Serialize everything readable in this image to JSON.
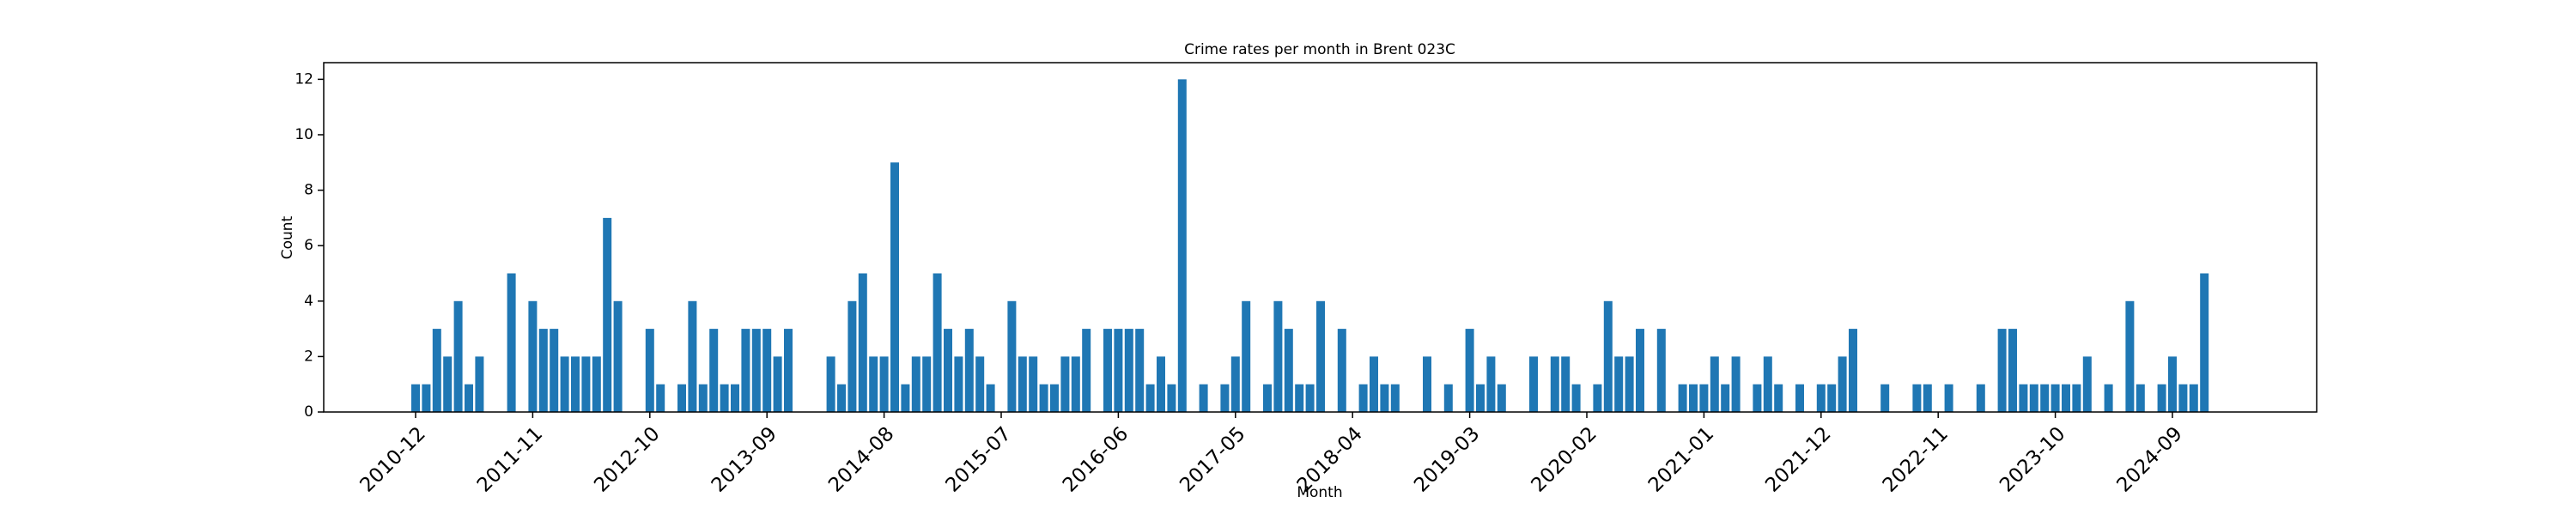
{
  "chart_data": {
    "type": "bar",
    "title": "Crime rates per month in Brent 023C",
    "x_label": "Month",
    "y_label": "Count",
    "color": "#1f77b4",
    "categories": [
      "2010-12",
      null,
      null,
      null,
      null,
      null,
      null,
      null,
      null,
      null,
      null,
      "2011-11",
      null,
      null,
      null,
      null,
      null,
      null,
      null,
      null,
      null,
      null,
      "2012-10",
      null,
      null,
      null,
      null,
      null,
      null,
      null,
      null,
      null,
      null,
      "2013-09",
      null,
      null,
      null,
      null,
      null,
      null,
      null,
      null,
      null,
      null,
      "2014-08",
      null,
      null,
      null,
      null,
      null,
      null,
      null,
      null,
      null,
      null,
      "2015-07",
      null,
      null,
      null,
      null,
      null,
      null,
      null,
      null,
      null,
      null,
      "2016-06",
      null,
      null,
      null,
      null,
      null,
      null,
      null,
      null,
      null,
      null,
      "2017-05",
      null,
      null,
      null,
      null,
      null,
      null,
      null,
      null,
      null,
      null,
      "2018-04",
      null,
      null,
      null,
      null,
      null,
      null,
      null,
      null,
      null,
      null,
      "2019-03",
      null,
      null,
      null,
      null,
      null,
      null,
      null,
      null,
      null,
      null,
      "2020-02",
      null,
      null,
      null,
      null,
      null,
      null,
      null,
      null,
      null,
      null,
      "2021-01",
      null,
      null,
      null,
      null,
      null,
      null,
      null,
      null,
      null,
      null,
      "2021-12",
      null,
      null,
      null,
      null,
      null,
      null,
      null,
      null,
      null,
      null,
      "2022-11",
      null,
      null,
      null,
      null,
      null,
      null,
      null,
      null,
      null,
      null,
      "2023-10",
      null,
      null,
      null,
      null,
      null,
      null,
      null,
      null,
      null,
      null,
      "2024-09",
      null,
      null,
      null
    ],
    "values": [
      1,
      1,
      3,
      2,
      4,
      1,
      2,
      0,
      0,
      5,
      0,
      4,
      3,
      3,
      2,
      2,
      2,
      2,
      7,
      4,
      0,
      0,
      3,
      1,
      0,
      1,
      4,
      1,
      3,
      1,
      1,
      3,
      3,
      3,
      2,
      3,
      0,
      0,
      0,
      2,
      1,
      4,
      5,
      2,
      2,
      9,
      1,
      2,
      2,
      5,
      3,
      2,
      3,
      2,
      1,
      0,
      4,
      2,
      2,
      1,
      1,
      2,
      2,
      3,
      0,
      3,
      3,
      3,
      3,
      1,
      2,
      1,
      12,
      0,
      1,
      0,
      1,
      2,
      4,
      0,
      1,
      4,
      3,
      1,
      1,
      4,
      0,
      3,
      0,
      1,
      2,
      1,
      1,
      0,
      0,
      2,
      0,
      1,
      0,
      3,
      1,
      2,
      1,
      0,
      0,
      2,
      0,
      2,
      2,
      1,
      0,
      1,
      4,
      2,
      2,
      3,
      0,
      3,
      0,
      1,
      1,
      1,
      2,
      1,
      2,
      0,
      1,
      2,
      1,
      0,
      1,
      0,
      1,
      1,
      2,
      3,
      0,
      0,
      1,
      0,
      0,
      1,
      1,
      0,
      1,
      0,
      0,
      1,
      0,
      3,
      3,
      1,
      1,
      1,
      1,
      1,
      1,
      2,
      0,
      1,
      0,
      4,
      1,
      0,
      1,
      2,
      1,
      1,
      5
    ],
    "ylim": [
      0,
      12.6
    ],
    "yticks": [
      0,
      2,
      4,
      6,
      8,
      10,
      12
    ]
  }
}
